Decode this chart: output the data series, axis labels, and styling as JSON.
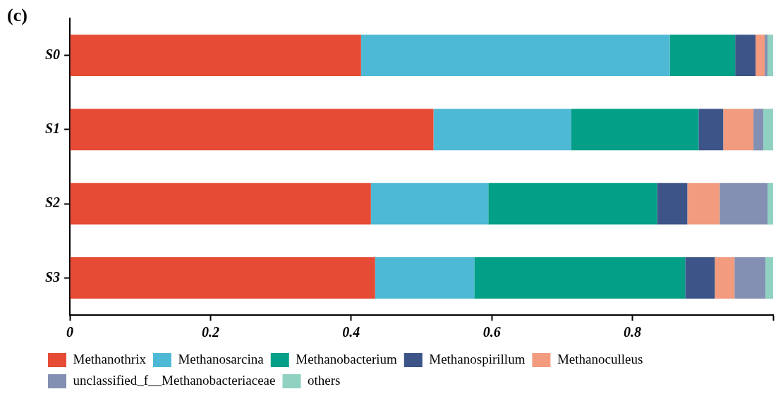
{
  "chart_data": {
    "type": "bar",
    "orientation": "horizontal",
    "stacked": true,
    "categories": [
      "S0",
      "S1",
      "S2",
      "S3"
    ],
    "series": [
      {
        "name": "Methanothrix",
        "color": "#e54b35",
        "values": [
          0.414,
          0.517,
          0.428,
          0.434
        ]
      },
      {
        "name": "Methanosarcina",
        "color": "#4db9d5",
        "values": [
          0.439,
          0.196,
          0.167,
          0.141
        ]
      },
      {
        "name": "Methanobacterium",
        "color": "#039f86",
        "values": [
          0.093,
          0.181,
          0.24,
          0.3
        ]
      },
      {
        "name": "Methanospirillum",
        "color": "#3c5488",
        "values": [
          0.029,
          0.035,
          0.043,
          0.042
        ]
      },
      {
        "name": "Methanoculleus",
        "color": "#f29b7f",
        "values": [
          0.013,
          0.043,
          0.046,
          0.028
        ]
      },
      {
        "name": "unclassified_f__Methanobacteriaceae",
        "color": "#8490b3",
        "values": [
          0.004,
          0.014,
          0.068,
          0.044
        ]
      },
      {
        "name": "others",
        "color": "#91d1c2",
        "values": [
          0.008,
          0.014,
          0.008,
          0.011
        ]
      }
    ],
    "xlim": [
      0,
      1
    ],
    "xticks": [
      0,
      0.2,
      0.4,
      0.6,
      0.8,
      {
        "value": 1,
        "label": null
      }
    ],
    "grid": false,
    "legend": "bottom",
    "annotations": [
      "(c)"
    ]
  }
}
